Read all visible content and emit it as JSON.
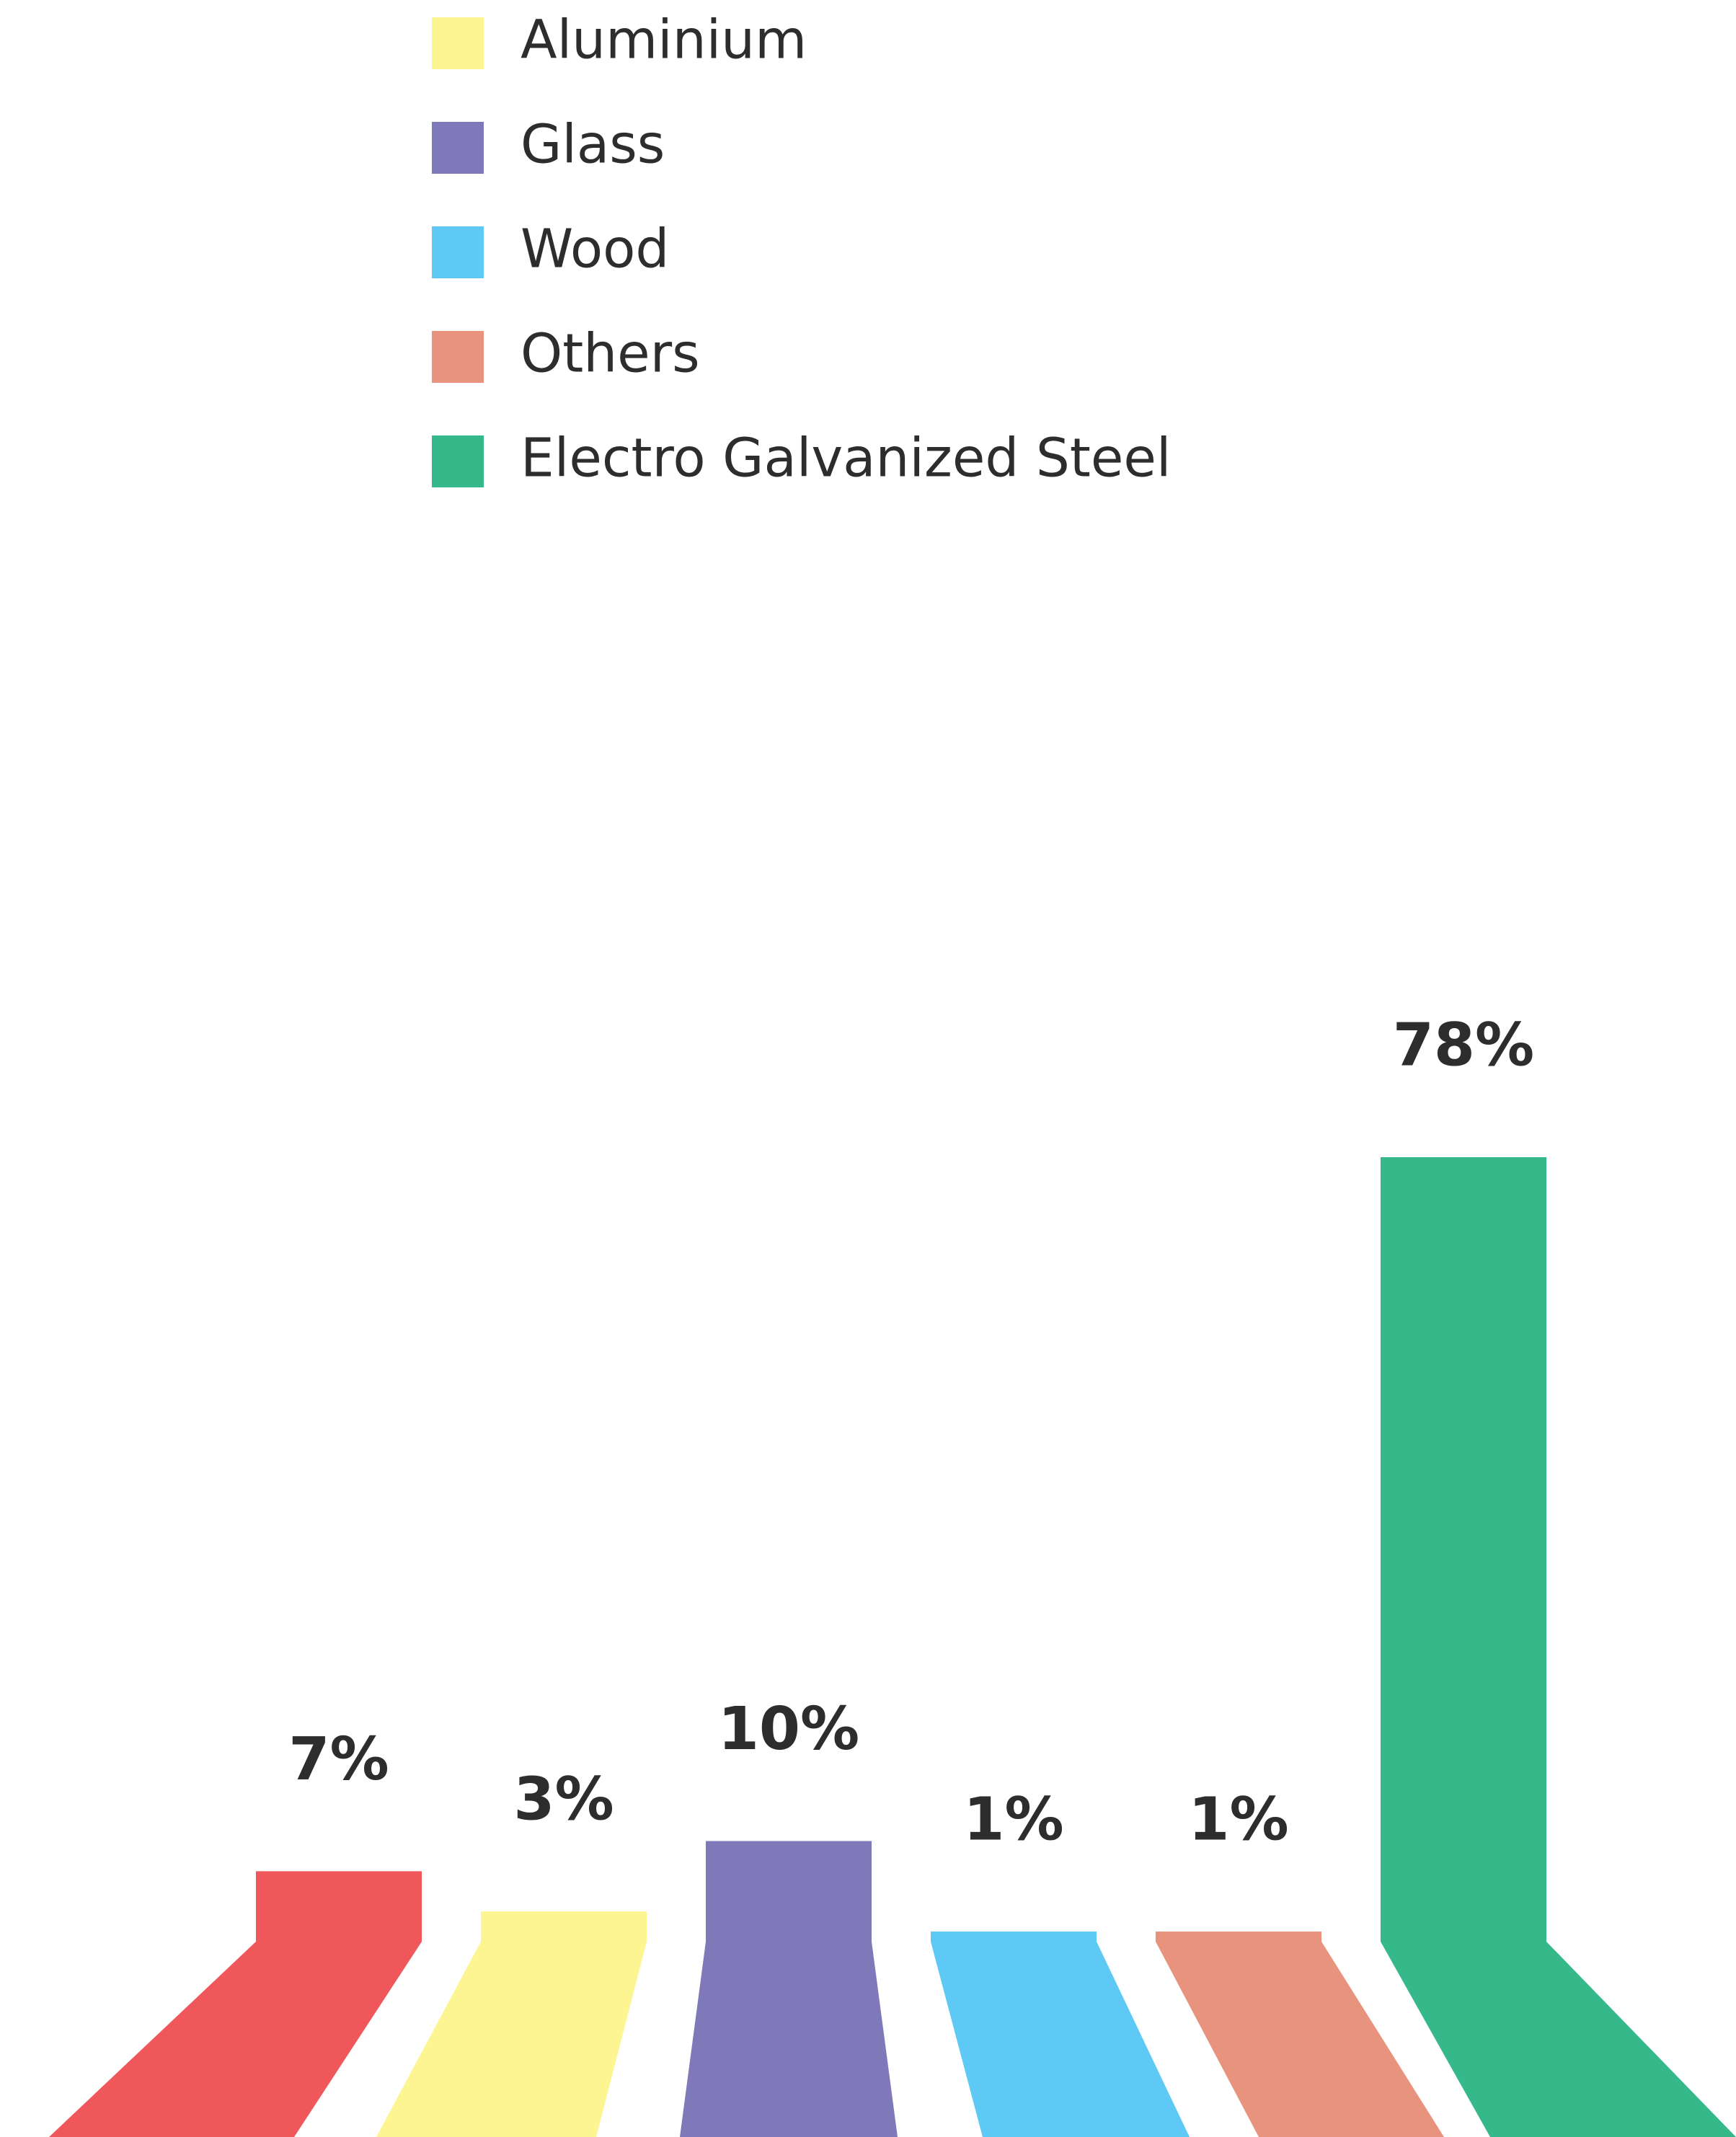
{
  "chart_data": {
    "type": "bar",
    "categories": [
      "",
      "Aluminium",
      "Glass",
      "Wood",
      "Others",
      "Electro Galvanized Steel"
    ],
    "values": [
      7,
      3,
      10,
      1,
      1,
      78
    ],
    "value_labels": [
      "7%",
      "3%",
      "10%",
      "1%",
      "1%",
      "78%"
    ],
    "colors": [
      "#f0575b",
      "#fdf592",
      "#7f79b9",
      "#5dc9f4",
      "#e8937e",
      "#35b98b"
    ],
    "legend": {
      "placement": "top-left",
      "entries": [
        {
          "label": "Aluminium",
          "color": "#fdf592"
        },
        {
          "label": "Glass",
          "color": "#7f79b9"
        },
        {
          "label": "Wood",
          "color": "#5dc9f4"
        },
        {
          "label": "Others",
          "color": "#e8937e"
        },
        {
          "label": "Electro Galvanized Steel",
          "color": "#35b98b"
        }
      ]
    },
    "grid": false,
    "ylim": [
      0,
      78
    ]
  }
}
